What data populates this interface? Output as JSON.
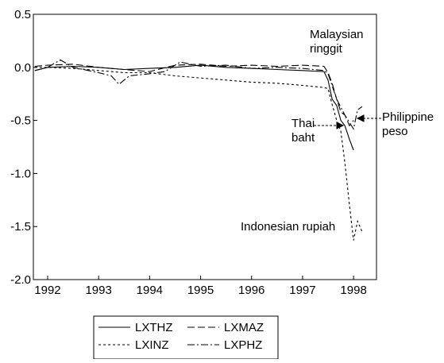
{
  "chart_data": {
    "type": "line",
    "x_label_note": null,
    "xlim": [
      1991.72,
      1998.45
    ],
    "xticks": [
      1992,
      1993,
      1994,
      1995,
      1996,
      1997,
      1998
    ],
    "ylim": [
      -2.0,
      0.5
    ],
    "yticks": [
      0.5,
      {
        "value": 0,
        "label": "0.0"
      },
      -0.5,
      {
        "value": -1,
        "label": "-1.0"
      },
      -1.5,
      {
        "value": -2,
        "label": "-2.0"
      }
    ],
    "series": [
      {
        "name": "LXTHZ",
        "color": "#000000",
        "dash": "none",
        "x": [
          1991.75,
          1992.0,
          1992.5,
          1993.0,
          1993.5,
          1994.0,
          1994.5,
          1995.0,
          1995.5,
          1996.0,
          1996.5,
          1997.0,
          1997.42,
          1997.5,
          1997.58,
          1997.67,
          1997.75,
          1997.83,
          1997.92,
          1998.0
        ],
        "values": [
          -0.03,
          0.0,
          0.01,
          0.0,
          -0.02,
          -0.01,
          0.0,
          0.02,
          0.0,
          -0.01,
          -0.02,
          -0.03,
          -0.04,
          -0.12,
          -0.3,
          -0.36,
          -0.5,
          -0.55,
          -0.68,
          -0.78
        ]
      },
      {
        "name": "LXMAZ",
        "color": "#000000",
        "dash": "9,4",
        "x": [
          1991.75,
          1992.0,
          1992.5,
          1993.0,
          1993.5,
          1994.0,
          1994.5,
          1995.0,
          1995.5,
          1996.0,
          1996.5,
          1997.0,
          1997.42,
          1997.5,
          1997.58,
          1997.67,
          1997.75,
          1997.83,
          1997.92,
          1998.0
        ],
        "values": [
          0.01,
          0.02,
          0.03,
          0.0,
          -0.02,
          -0.04,
          0.02,
          0.03,
          0.01,
          0.02,
          0.01,
          0.02,
          0.01,
          -0.05,
          -0.15,
          -0.3,
          -0.42,
          -0.45,
          -0.55,
          -0.5
        ]
      },
      {
        "name": "LXINZ",
        "color": "#000000",
        "dash": "3,3",
        "x": [
          1991.75,
          1992.0,
          1992.5,
          1993.0,
          1993.5,
          1994.0,
          1994.5,
          1995.0,
          1995.5,
          1996.0,
          1996.5,
          1997.0,
          1997.42,
          1997.5,
          1997.58,
          1997.67,
          1997.75,
          1997.83,
          1997.92,
          1998.0,
          1998.08,
          1998.17
        ],
        "values": [
          0.0,
          0.0,
          -0.01,
          -0.03,
          -0.05,
          -0.05,
          -0.08,
          -0.1,
          -0.12,
          -0.14,
          -0.15,
          -0.17,
          -0.19,
          -0.2,
          -0.35,
          -0.5,
          -0.6,
          -0.9,
          -1.3,
          -1.63,
          -1.45,
          -1.55
        ]
      },
      {
        "name": "LXPHZ",
        "color": "#000000",
        "dash": "9,3,2,3",
        "x": [
          1991.75,
          1992.0,
          1992.25,
          1992.5,
          1993.0,
          1993.25,
          1993.4,
          1993.6,
          1994.0,
          1994.3,
          1994.6,
          1995.0,
          1995.5,
          1996.0,
          1996.5,
          1997.0,
          1997.42,
          1997.5,
          1997.67,
          1997.83,
          1998.0,
          1998.08,
          1998.17
        ],
        "values": [
          -0.03,
          0.0,
          0.07,
          0.0,
          -0.05,
          -0.08,
          -0.16,
          -0.08,
          -0.06,
          -0.04,
          0.05,
          0.01,
          0.02,
          -0.01,
          0.0,
          -0.01,
          -0.03,
          -0.06,
          -0.3,
          -0.45,
          -0.58,
          -0.4,
          -0.37
        ]
      }
    ],
    "annotations": [
      {
        "lines": [
          "Malaysian",
          "ringgit"
        ]
      },
      {
        "lines": [
          "Thai",
          "baht"
        ]
      },
      {
        "lines": [
          "Philippine",
          "peso"
        ]
      },
      {
        "lines": [
          "Indonesian rupiah"
        ]
      }
    ],
    "legend": "bottom"
  }
}
